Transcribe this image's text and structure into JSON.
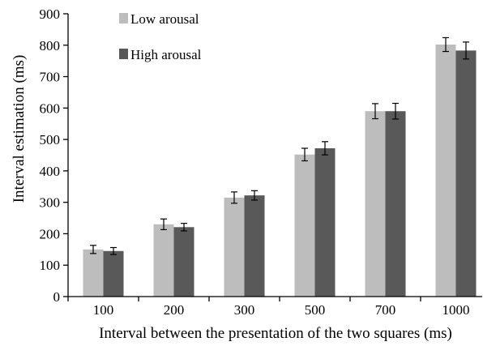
{
  "chart_data": {
    "type": "bar",
    "title": "",
    "xlabel": "Interval between the presentation of the two squares (ms)",
    "ylabel": "Interval estimation (ms)",
    "ylim": [
      0,
      900
    ],
    "yticks": [
      0,
      100,
      200,
      300,
      400,
      500,
      600,
      700,
      800,
      900
    ],
    "categories": [
      "100",
      "200",
      "300",
      "500",
      "700",
      "1000"
    ],
    "series": [
      {
        "name": "Low arousal",
        "color": "#bdbdbd",
        "values": [
          150,
          230,
          315,
          452,
          590,
          802
        ],
        "errors": [
          13,
          17,
          18,
          20,
          24,
          22
        ]
      },
      {
        "name": "High arousal",
        "color": "#595959",
        "values": [
          145,
          221,
          322,
          472,
          590,
          783
        ],
        "errors": [
          11,
          12,
          15,
          21,
          25,
          27
        ]
      }
    ],
    "legend": "top-left",
    "grid": false
  }
}
